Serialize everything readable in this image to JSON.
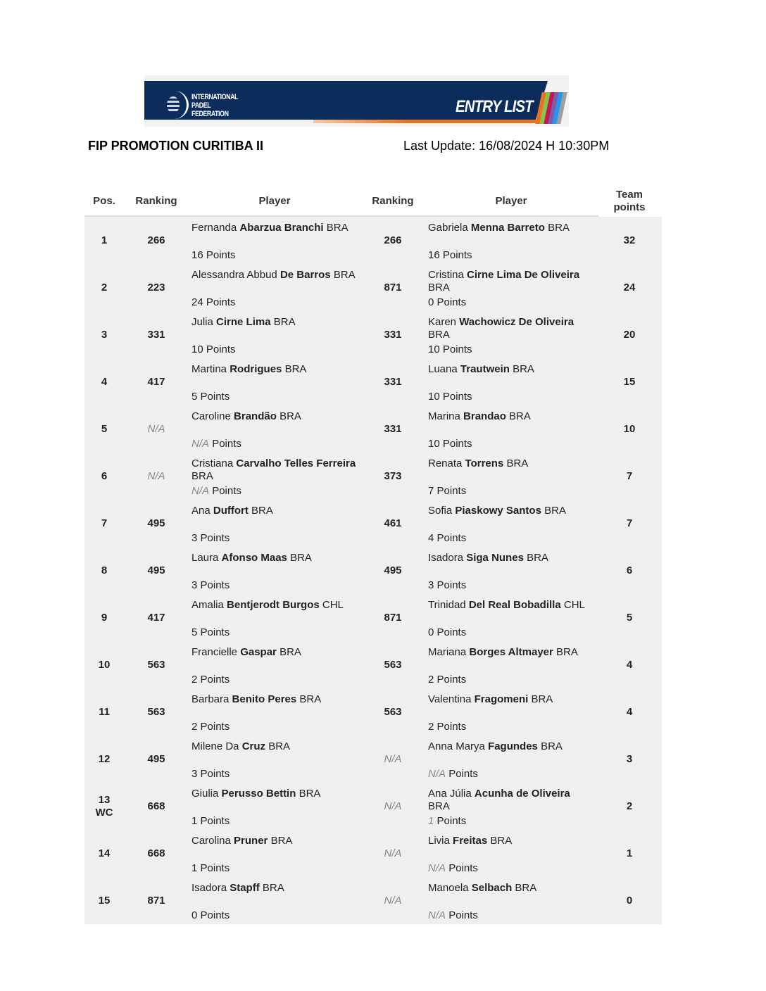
{
  "banner": {
    "org_lines": [
      "INTERNATIONAL",
      "PADEL",
      "FEDERATION"
    ],
    "label": "ENTRY LIST"
  },
  "title": "FIP PROMOTION CURITIBA II",
  "last_update": "Last Update: 16/08/2024 H 10:30PM",
  "headers": {
    "pos": "Pos.",
    "ranking1": "Ranking",
    "player1": "Player",
    "ranking2": "Ranking",
    "player2": "Player",
    "team_points": "Team points"
  },
  "points_label": "Points",
  "rows": [
    {
      "pos": "1",
      "rank1": "266",
      "p1": {
        "first": "Fernanda",
        "last": "Abarzua Branchi",
        "nat": "BRA",
        "points": "16"
      },
      "rank2": "266",
      "p2": {
        "first": "Gabriela",
        "last": "Menna Barreto",
        "nat": "BRA",
        "points": "16"
      },
      "team": "32"
    },
    {
      "pos": "2",
      "rank1": "223",
      "p1": {
        "first": "Alessandra Abbud",
        "last": "De Barros",
        "nat": "BRA",
        "points": "24"
      },
      "rank2": "871",
      "p2": {
        "first": "Cristina",
        "last": "Cirne Lima De Oliveira",
        "nat": "BRA",
        "points": "0"
      },
      "team": "24"
    },
    {
      "pos": "3",
      "rank1": "331",
      "p1": {
        "first": "Julia",
        "last": "Cirne Lima",
        "nat": "BRA",
        "points": "10"
      },
      "rank2": "331",
      "p2": {
        "first": "Karen",
        "last": "Wachowicz De Oliveira",
        "nat": "BRA",
        "points": "10"
      },
      "team": "20"
    },
    {
      "pos": "4",
      "rank1": "417",
      "p1": {
        "first": "Martina",
        "last": "Rodrigues",
        "nat": "BRA",
        "points": "5"
      },
      "rank2": "331",
      "p2": {
        "first": "Luana",
        "last": "Trautwein",
        "nat": "BRA",
        "points": "10"
      },
      "team": "15"
    },
    {
      "pos": "5",
      "rank1": "N/A",
      "p1": {
        "first": "Caroline",
        "last": "Brandão",
        "nat": "BRA",
        "points": "N/A"
      },
      "rank2": "331",
      "p2": {
        "first": "Marina",
        "last": "Brandao",
        "nat": "BRA",
        "points": "10"
      },
      "team": "10"
    },
    {
      "pos": "6",
      "rank1": "N/A",
      "p1": {
        "first": "Cristiana",
        "last": "Carvalho Telles Ferreira",
        "nat": "BRA",
        "points": "N/A"
      },
      "rank2": "373",
      "p2": {
        "first": "Renata",
        "last": "Torrens",
        "nat": "BRA",
        "points": "7"
      },
      "team": "7"
    },
    {
      "pos": "7",
      "rank1": "495",
      "p1": {
        "first": "Ana",
        "last": "Duffort",
        "nat": "BRA",
        "points": "3"
      },
      "rank2": "461",
      "p2": {
        "first": "Sofia",
        "last": "Piaskowy Santos",
        "nat": "BRA",
        "points": "4"
      },
      "team": "7"
    },
    {
      "pos": "8",
      "rank1": "495",
      "p1": {
        "first": "Laura",
        "last": "Afonso Maas",
        "nat": "BRA",
        "points": "3"
      },
      "rank2": "495",
      "p2": {
        "first": "Isadora",
        "last": "Siga Nunes",
        "nat": "BRA",
        "points": "3"
      },
      "team": "6"
    },
    {
      "pos": "9",
      "rank1": "417",
      "p1": {
        "first": "Amalia",
        "last": "Bentjerodt Burgos",
        "nat": "CHL",
        "points": "5"
      },
      "rank2": "871",
      "p2": {
        "first": "Trinidad",
        "last": "Del Real Bobadilla",
        "nat": "CHL",
        "points": "0"
      },
      "team": "5"
    },
    {
      "pos": "10",
      "rank1": "563",
      "p1": {
        "first": "Francielle",
        "last": "Gaspar",
        "nat": "BRA",
        "points": "2"
      },
      "rank2": "563",
      "p2": {
        "first": "Mariana",
        "last": "Borges Altmayer",
        "nat": "BRA",
        "points": "2"
      },
      "team": "4"
    },
    {
      "pos": "11",
      "rank1": "563",
      "p1": {
        "first": "Barbara",
        "last": "Benito Peres",
        "nat": "BRA",
        "points": "2"
      },
      "rank2": "563",
      "p2": {
        "first": "Valentina",
        "last": "Fragomeni",
        "nat": "BRA",
        "points": "2"
      },
      "team": "4"
    },
    {
      "pos": "12",
      "rank1": "495",
      "p1": {
        "first": "Milene Da",
        "last": "Cruz",
        "nat": "BRA",
        "points": "3"
      },
      "rank2": "N/A",
      "p2": {
        "first": "Anna Marya",
        "last": "Fagundes",
        "nat": "BRA",
        "points": "N/A"
      },
      "team": "3"
    },
    {
      "pos": "13",
      "pos_note": "WC",
      "rank1": "668",
      "p1": {
        "first": "Giulia",
        "last": "Perusso Bettin",
        "nat": "BRA",
        "points": "1"
      },
      "rank2": "N/A",
      "p2": {
        "first": "Ana Júlia",
        "last": "Acunha de Oliveira",
        "nat": "BRA",
        "points": "1",
        "points_italic": true
      },
      "team": "2"
    },
    {
      "pos": "14",
      "rank1": "668",
      "p1": {
        "first": "Carolina",
        "last": "Pruner",
        "nat": "BRA",
        "points": "1"
      },
      "rank2": "N/A",
      "p2": {
        "first": "Livia",
        "last": "Freitas",
        "nat": "BRA",
        "points": "N/A"
      },
      "team": "1"
    },
    {
      "pos": "15",
      "rank1": "871",
      "p1": {
        "first": "Isadora",
        "last": "Stapff",
        "nat": "BRA",
        "points": "0"
      },
      "rank2": "N/A",
      "p2": {
        "first": "Manoela",
        "last": "Selbach",
        "nat": "BRA",
        "points": "N/A"
      },
      "team": "0"
    }
  ]
}
